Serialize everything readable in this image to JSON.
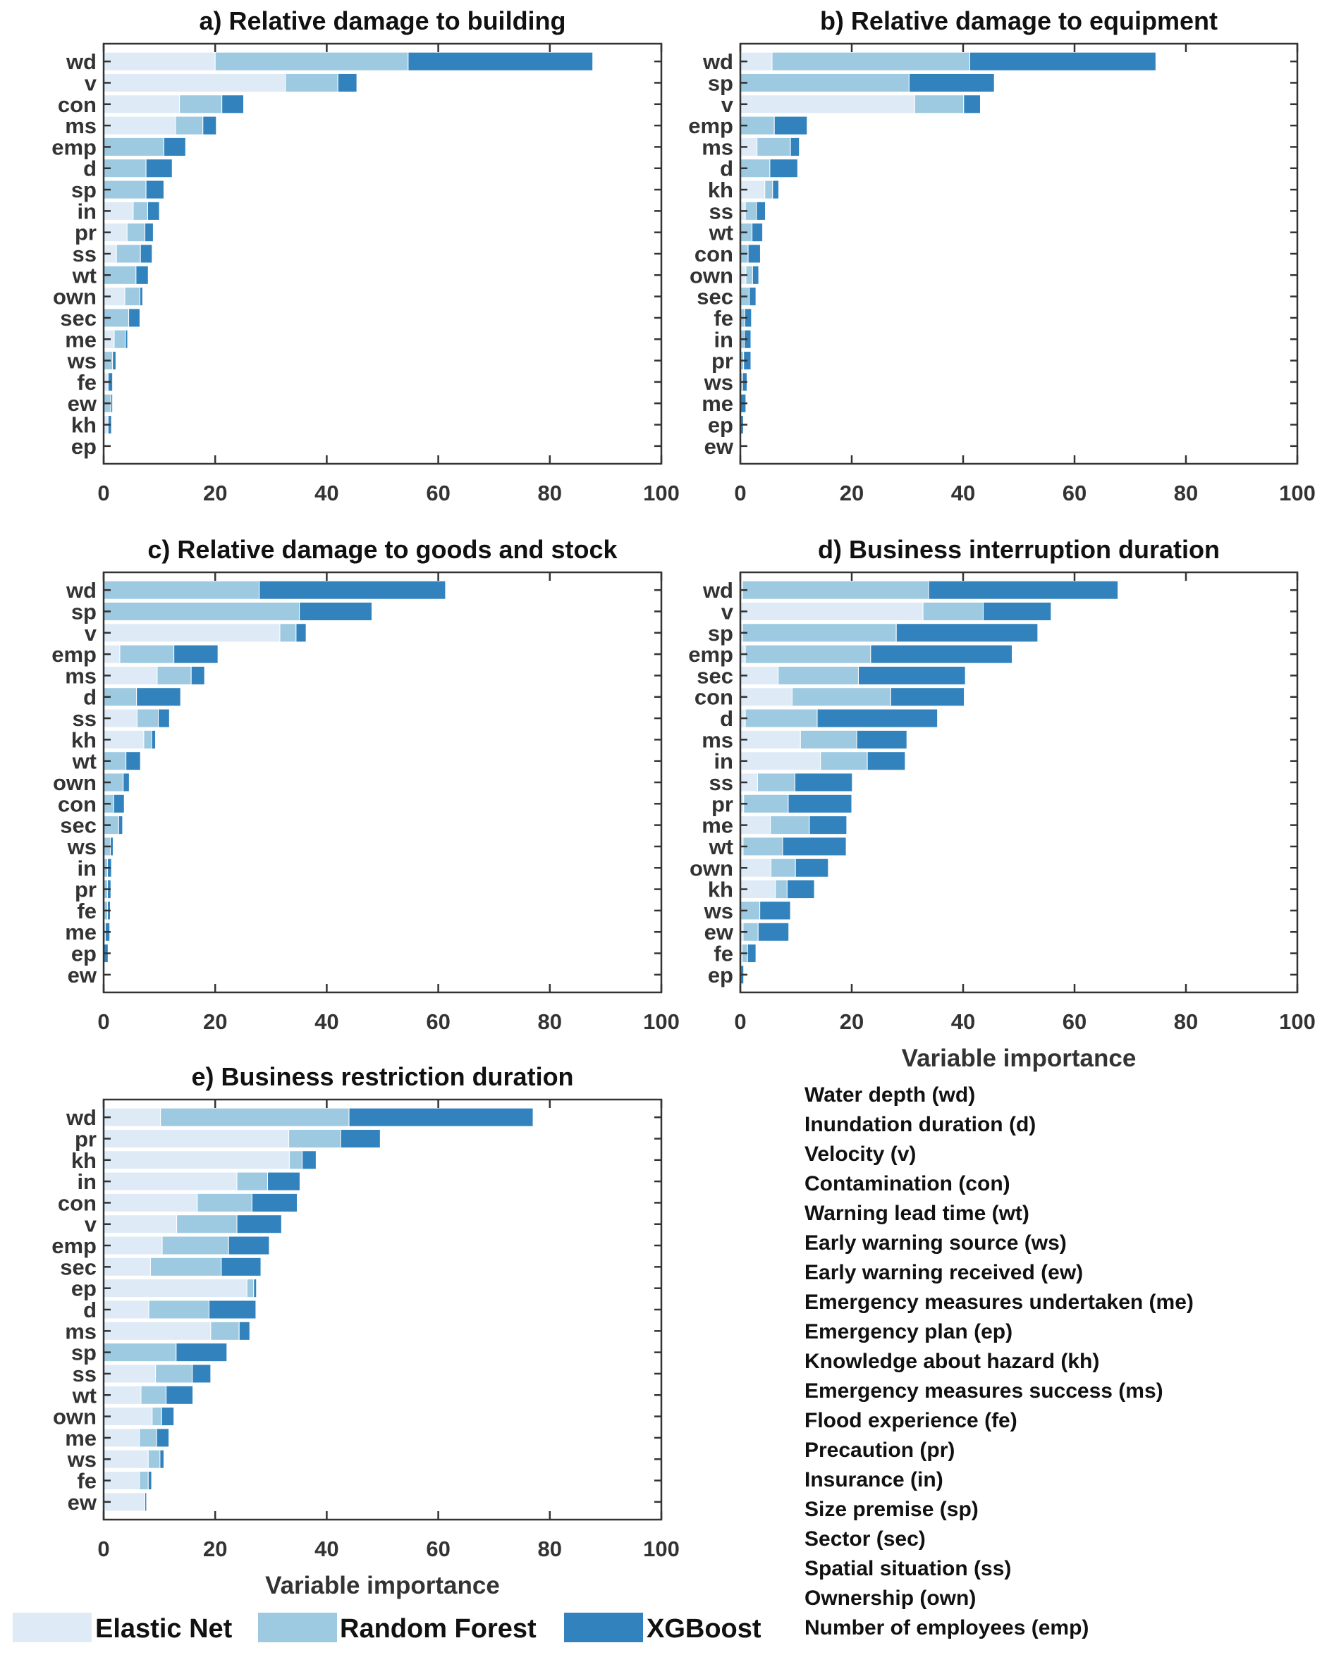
{
  "colors": {
    "elastic_net": "#deebf7",
    "random_forest": "#9ecae1",
    "xgboost": "#3182bd"
  },
  "legend": [
    {
      "key": "elastic_net",
      "label": "Elastic Net"
    },
    {
      "key": "random_forest",
      "label": "Random Forest"
    },
    {
      "key": "xgboost",
      "label": "XGBoost"
    }
  ],
  "variable_list": [
    "Water depth (wd)",
    "Inundation duration (d)",
    "Velocity (v)",
    "Contamination (con)",
    "Warning lead time (wt)",
    "Early warning source (ws)",
    "Early warning received (ew)",
    "Emergency measures undertaken (me)",
    "Emergency plan (ep)",
    "Knowledge about hazard (kh)",
    "Emergency measures success (ms)",
    "Flood experience (fe)",
    "Precaution (pr)",
    "Insurance (in)",
    "Size premise (sp)",
    "Sector (sec)",
    "Spatial situation (ss)",
    "Ownership (own)",
    "Number of employees (emp)"
  ],
  "chart_data": [
    {
      "type": "bar",
      "orientation": "horizontal-stacked",
      "title": "a) Relative damage to building",
      "xlabel": "",
      "xlim": [
        0,
        100
      ],
      "xticks": [
        0,
        20,
        40,
        60,
        80,
        100
      ],
      "categories": [
        "wd",
        "v",
        "con",
        "ms",
        "emp",
        "d",
        "sp",
        "in",
        "pr",
        "ss",
        "wt",
        "own",
        "sec",
        "me",
        "ws",
        "fe",
        "ew",
        "kh",
        "ep"
      ],
      "series": [
        {
          "name": "Elastic Net",
          "values": [
            20.0,
            32.6,
            13.6,
            12.9,
            0,
            0,
            0,
            5.3,
            4.2,
            2.3,
            0,
            3.8,
            0,
            1.9,
            0,
            0.8,
            0,
            0.8,
            0.1
          ]
        },
        {
          "name": "Random Forest",
          "values": [
            34.6,
            9.4,
            7.6,
            4.9,
            10.8,
            7.6,
            7.6,
            2.6,
            3.2,
            4.3,
            5.8,
            2.7,
            4.5,
            2.0,
            1.6,
            0,
            1.3,
            0,
            0.1
          ]
        },
        {
          "name": "XGBoost",
          "values": [
            33.1,
            3.4,
            3.9,
            2.4,
            3.9,
            4.7,
            3.2,
            2.1,
            1.5,
            2.1,
            2.2,
            0.5,
            2.0,
            0.4,
            0.6,
            0.8,
            0.3,
            0.6,
            0
          ]
        }
      ]
    },
    {
      "type": "bar",
      "orientation": "horizontal-stacked",
      "title": "b) Relative damage to equipment",
      "xlabel": "",
      "xlim": [
        0,
        100
      ],
      "xticks": [
        0,
        20,
        40,
        60,
        80,
        100
      ],
      "categories": [
        "wd",
        "sp",
        "v",
        "emp",
        "ms",
        "d",
        "kh",
        "ss",
        "wt",
        "con",
        "own",
        "sec",
        "fe",
        "in",
        "pr",
        "ws",
        "me",
        "ep",
        "ew"
      ],
      "series": [
        {
          "name": "Elastic Net",
          "values": [
            5.7,
            0,
            31.3,
            0,
            3.0,
            0,
            4.4,
            0.9,
            0,
            0,
            1.0,
            0,
            0,
            0,
            0,
            0,
            0,
            0,
            0
          ]
        },
        {
          "name": "Random Forest",
          "values": [
            35.5,
            30.3,
            8.8,
            6.1,
            6.0,
            5.3,
            1.4,
            2.0,
            2.1,
            1.4,
            1.2,
            1.6,
            0.8,
            0.7,
            0.6,
            0.4,
            0,
            0,
            0
          ]
        },
        {
          "name": "XGBoost",
          "values": [
            33.4,
            15.3,
            3.0,
            5.9,
            1.6,
            5.0,
            1.1,
            1.6,
            1.9,
            2.2,
            1.1,
            1.2,
            1.2,
            1.2,
            1.3,
            0.8,
            1.0,
            0.55,
            0
          ]
        }
      ]
    },
    {
      "type": "bar",
      "orientation": "horizontal-stacked",
      "title": "c) Relative damage to goods and stock",
      "xlabel": "",
      "xlim": [
        0,
        100
      ],
      "xticks": [
        0,
        20,
        40,
        60,
        80,
        100
      ],
      "categories": [
        "wd",
        "sp",
        "v",
        "emp",
        "ms",
        "d",
        "ss",
        "kh",
        "wt",
        "own",
        "con",
        "sec",
        "ws",
        "in",
        "pr",
        "fe",
        "me",
        "ep",
        "ew"
      ],
      "series": [
        {
          "name": "Elastic Net",
          "values": [
            0,
            0,
            31.6,
            2.9,
            9.6,
            0,
            6.0,
            7.2,
            0,
            0,
            0,
            0,
            0,
            0,
            0,
            0,
            0,
            0,
            0
          ]
        },
        {
          "name": "Random Forest",
          "values": [
            27.9,
            35.1,
            2.9,
            9.7,
            6.1,
            5.9,
            3.8,
            1.4,
            4.0,
            3.5,
            1.8,
            2.7,
            1.2,
            0.7,
            0.7,
            0.7,
            0.3,
            0,
            0
          ]
        },
        {
          "name": "XGBoost",
          "values": [
            33.4,
            13.0,
            1.8,
            7.9,
            2.4,
            7.9,
            2.0,
            0.7,
            2.6,
            1.1,
            1.9,
            0.7,
            0.5,
            0.7,
            0.6,
            0.5,
            0.8,
            0.8,
            0
          ]
        }
      ]
    },
    {
      "type": "bar",
      "orientation": "horizontal-stacked",
      "title": "d) Business interruption duration",
      "xlabel": "Variable importance",
      "xlim": [
        0,
        100
      ],
      "xticks": [
        0,
        20,
        40,
        60,
        80,
        100
      ],
      "categories": [
        "wd",
        "v",
        "sp",
        "emp",
        "sec",
        "con",
        "d",
        "ms",
        "in",
        "ss",
        "pr",
        "me",
        "wt",
        "own",
        "kh",
        "ws",
        "ew",
        "fe",
        "ep"
      ],
      "series": [
        {
          "name": "Elastic Net",
          "values": [
            0.4,
            32.8,
            0.4,
            0.9,
            6.8,
            9.3,
            0.9,
            10.8,
            14.4,
            3.1,
            0.6,
            5.4,
            0.5,
            5.5,
            6.3,
            0,
            0.5,
            0.3,
            0
          ]
        },
        {
          "name": "Random Forest",
          "values": [
            33.4,
            10.8,
            27.6,
            22.5,
            14.4,
            17.7,
            12.9,
            10.1,
            8.4,
            6.7,
            8.0,
            7.0,
            7.1,
            4.4,
            2.1,
            3.5,
            2.7,
            1.0,
            0
          ]
        },
        {
          "name": "XGBoost",
          "values": [
            34.0,
            12.2,
            25.4,
            25.4,
            19.2,
            13.2,
            21.6,
            9.0,
            6.8,
            10.3,
            11.4,
            6.7,
            11.4,
            5.9,
            4.9,
            5.5,
            5.5,
            1.5,
            0.6
          ]
        }
      ]
    },
    {
      "type": "bar",
      "orientation": "horizontal-stacked",
      "title": "e) Business restriction duration",
      "xlabel": "Variable importance",
      "xlim": [
        0,
        100
      ],
      "xticks": [
        0,
        20,
        40,
        60,
        80,
        100
      ],
      "categories": [
        "wd",
        "pr",
        "kh",
        "in",
        "con",
        "v",
        "emp",
        "sec",
        "ep",
        "d",
        "ms",
        "sp",
        "ss",
        "wt",
        "own",
        "me",
        "ws",
        "fe",
        "ew"
      ],
      "series": [
        {
          "name": "Elastic Net",
          "values": [
            10.2,
            33.2,
            33.3,
            23.9,
            16.8,
            13.1,
            10.5,
            8.4,
            25.7,
            8.1,
            19.2,
            0,
            9.3,
            6.7,
            8.7,
            6.4,
            8.0,
            6.4,
            7.4
          ]
        },
        {
          "name": "Random Forest",
          "values": [
            33.8,
            9.3,
            2.3,
            5.5,
            9.8,
            10.8,
            11.9,
            12.7,
            1.2,
            10.8,
            5.1,
            13.0,
            6.6,
            4.5,
            1.7,
            3.1,
            2.1,
            1.6,
            0
          ]
        },
        {
          "name": "XGBoost",
          "values": [
            33.0,
            7.1,
            2.5,
            5.8,
            8.1,
            8.0,
            7.3,
            7.1,
            0.5,
            8.4,
            1.9,
            9.1,
            3.3,
            4.8,
            2.2,
            2.2,
            0.7,
            0.6,
            0.3
          ]
        }
      ]
    }
  ]
}
